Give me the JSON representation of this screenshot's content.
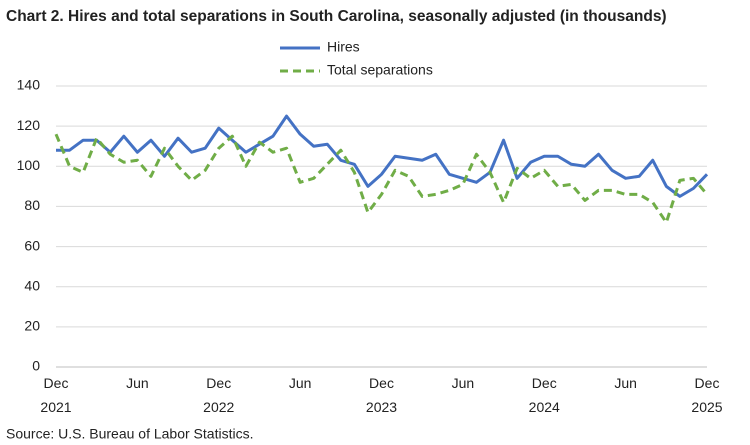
{
  "chart_data": {
    "type": "line",
    "title": "Chart 2. Hires and total separations in South Carolina, seasonally adjusted (in thousands)",
    "source": "Source: U.S. Bureau of Labor Statistics.",
    "categories": [
      "Dec 2021",
      null,
      null,
      null,
      null,
      null,
      "Jun",
      null,
      null,
      null,
      null,
      null,
      "Dec 2022",
      null,
      null,
      null,
      null,
      null,
      "Jun",
      null,
      null,
      null,
      null,
      null,
      "Dec 2023",
      null,
      null,
      null,
      null,
      null,
      "Jun",
      null,
      null,
      null,
      null,
      null,
      "Dec 2024",
      null,
      null,
      null,
      null,
      null,
      "Jun",
      null,
      null,
      null,
      null,
      null,
      "Dec 2025"
    ],
    "series": [
      {
        "name": "Hires",
        "color": "#4472c4",
        "dashed": false,
        "values": [
          108,
          108,
          113,
          113,
          107,
          115,
          107,
          113,
          105,
          114,
          107,
          109,
          119,
          113,
          107,
          111,
          115,
          125,
          116,
          110,
          111,
          103,
          101,
          90,
          96,
          105,
          104,
          103,
          106,
          96,
          94,
          92,
          97,
          113,
          94,
          102,
          105,
          105,
          101,
          100,
          106,
          98,
          94,
          95,
          103,
          90,
          85,
          89,
          96
        ]
      },
      {
        "name": "Total separations",
        "color": "#70ad47",
        "dashed": true,
        "values": [
          116,
          100,
          97,
          114,
          106,
          102,
          103,
          95,
          109,
          100,
          93,
          98,
          109,
          115,
          100,
          112,
          107,
          109,
          92,
          94,
          101,
          108,
          97,
          77,
          86,
          98,
          95,
          85,
          86,
          88,
          91,
          106,
          97,
          82,
          99,
          94,
          98,
          90,
          91,
          83,
          88,
          88,
          86,
          86,
          82,
          72,
          93,
          94,
          86
        ]
      }
    ],
    "ylim": [
      0,
      140
    ],
    "yticks": [
      0,
      20,
      40,
      60,
      80,
      100,
      120,
      140
    ],
    "grid": true,
    "legend": "top"
  }
}
